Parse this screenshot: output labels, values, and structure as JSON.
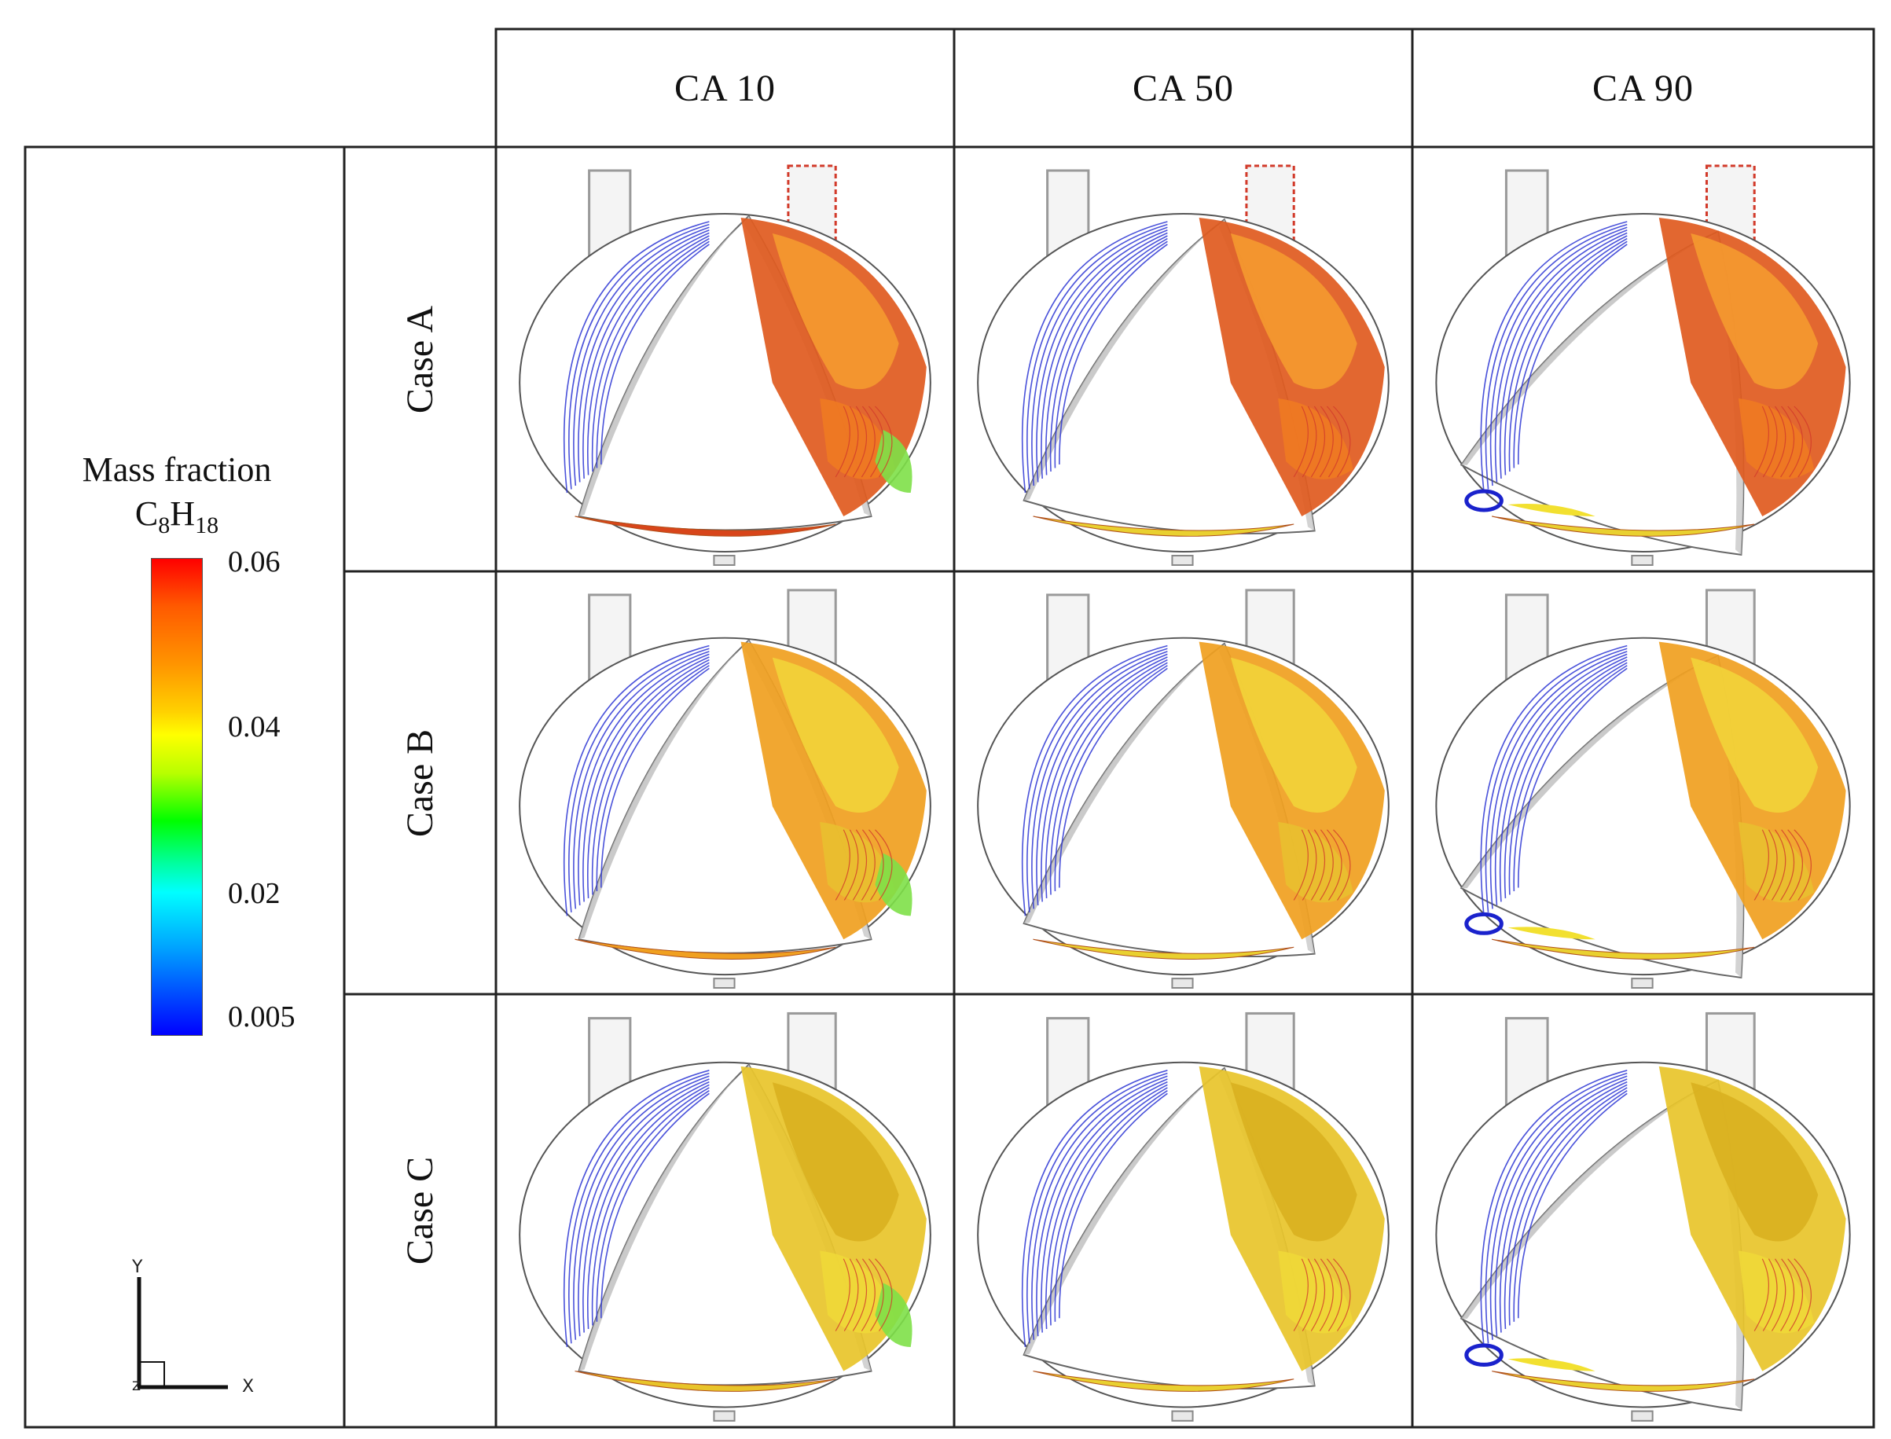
{
  "figure": {
    "columns": [
      "CA 10",
      "CA 50",
      "CA 90"
    ],
    "rows": [
      "Case A",
      "Case B",
      "Case C"
    ]
  },
  "legend": {
    "title_line1": "Mass fraction",
    "title_species": "C",
    "title_sub1": "8",
    "title_mid": "H",
    "title_sub2": "18",
    "ticks": [
      "0.06",
      "0.04",
      "0.02",
      "0.005"
    ]
  },
  "axes": {
    "y": "Y",
    "x": "X",
    "z": "Z"
  },
  "colors": {
    "border": "#222222",
    "streamline_blue": "#2b35d4",
    "streamline_red": "#d23a2a",
    "geometry_gray": "#9a9a9a",
    "colormap": [
      "#ff0000",
      "#ff8c00",
      "#ffff00",
      "#00ff00",
      "#00ffff",
      "#0000ff"
    ]
  }
}
